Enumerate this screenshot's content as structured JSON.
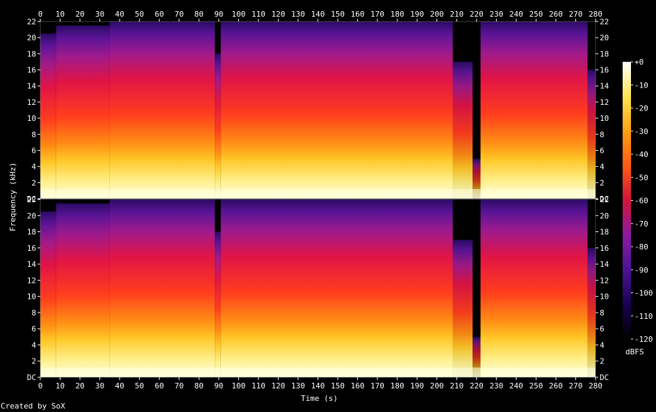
{
  "chart_data": {
    "type": "heatmap",
    "title": "",
    "xlabel": "Time (s)",
    "ylabel": "Frequency (kHz)",
    "xlim": [
      0,
      280
    ],
    "ylim": [
      0,
      22
    ],
    "x_ticks": [
      "0",
      "10",
      "20",
      "30",
      "40",
      "50",
      "60",
      "70",
      "80",
      "90",
      "100",
      "110",
      "120",
      "130",
      "140",
      "150",
      "160",
      "170",
      "180",
      "190",
      "200",
      "210",
      "220",
      "230",
      "240",
      "250",
      "260",
      "270",
      "280"
    ],
    "y_ticks": [
      "DC",
      "2",
      "4",
      "6",
      "8",
      "10",
      "12",
      "14",
      "16",
      "18",
      "20",
      "22"
    ],
    "colorbar": {
      "label": "dBFS",
      "ticks": [
        "+0",
        "-10",
        "-20",
        "-30",
        "-40",
        "-50",
        "-60",
        "-70",
        "-80",
        "-90",
        "-100",
        "-110",
        "-120"
      ],
      "range": [
        -120,
        0
      ],
      "colors": [
        "#000000",
        "#1a0050",
        "#4b1496",
        "#8c1aa0",
        "#d2143c",
        "#ff5a14",
        "#ffa014",
        "#ffe650",
        "#ffffff"
      ]
    },
    "channels": [
      {
        "name": "",
        "segments": [
          {
            "t0": 0,
            "t1": 8,
            "ceiling_khz": 20.5,
            "level": 0.7
          },
          {
            "t0": 8,
            "t1": 35,
            "ceiling_khz": 21.5,
            "level": 0.82
          },
          {
            "t0": 35,
            "t1": 88,
            "ceiling_khz": 22,
            "level": 0.88
          },
          {
            "t0": 88,
            "t1": 91,
            "ceiling_khz": 18,
            "level": 0.6
          },
          {
            "t0": 91,
            "t1": 208,
            "ceiling_khz": 22,
            "level": 0.86
          },
          {
            "t0": 208,
            "t1": 218,
            "ceiling_khz": 17,
            "level": 0.55
          },
          {
            "t0": 218,
            "t1": 222,
            "ceiling_khz": 5,
            "level": 0.35
          },
          {
            "t0": 222,
            "t1": 276,
            "ceiling_khz": 22,
            "level": 0.86
          },
          {
            "t0": 276,
            "t1": 280,
            "ceiling_khz": 16,
            "level": 0.5
          }
        ]
      },
      {
        "name": "",
        "segments": [
          {
            "t0": 0,
            "t1": 8,
            "ceiling_khz": 20.5,
            "level": 0.7
          },
          {
            "t0": 8,
            "t1": 35,
            "ceiling_khz": 21.5,
            "level": 0.82
          },
          {
            "t0": 35,
            "t1": 88,
            "ceiling_khz": 22,
            "level": 0.88
          },
          {
            "t0": 88,
            "t1": 91,
            "ceiling_khz": 18,
            "level": 0.6
          },
          {
            "t0": 91,
            "t1": 208,
            "ceiling_khz": 22,
            "level": 0.86
          },
          {
            "t0": 208,
            "t1": 218,
            "ceiling_khz": 17,
            "level": 0.55
          },
          {
            "t0": 218,
            "t1": 222,
            "ceiling_khz": 5,
            "level": 0.35
          },
          {
            "t0": 222,
            "t1": 276,
            "ceiling_khz": 22,
            "level": 0.86
          },
          {
            "t0": 276,
            "t1": 280,
            "ceiling_khz": 16,
            "level": 0.5
          }
        ]
      }
    ]
  },
  "footer": {
    "created_by": "Created by SoX"
  }
}
